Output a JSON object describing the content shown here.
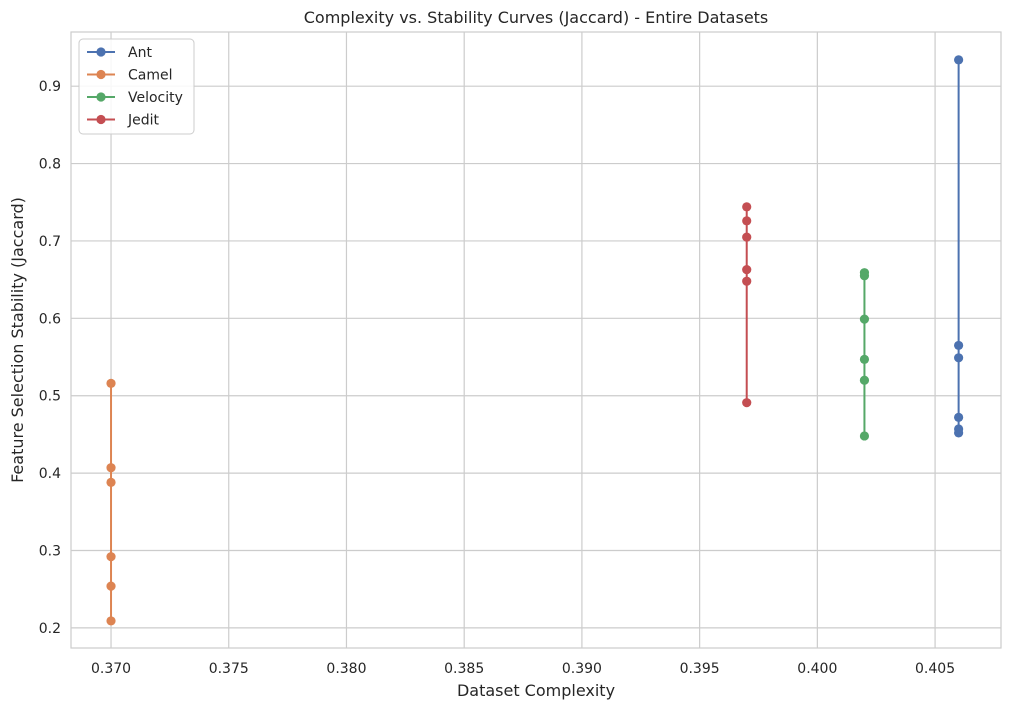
{
  "chart_data": {
    "type": "line",
    "title": "Complexity vs. Stability Curves (Jaccard) - Entire Datasets",
    "xlabel": "Dataset Complexity",
    "ylabel": "Feature Selection Stability (Jaccard)",
    "xlim": [
      0.3683,
      0.4078
    ],
    "ylim": [
      0.174,
      0.97
    ],
    "x_ticks": [
      0.37,
      0.375,
      0.38,
      0.385,
      0.39,
      0.395,
      0.4,
      0.405
    ],
    "x_tick_labels": [
      "0.370",
      "0.375",
      "0.380",
      "0.385",
      "0.390",
      "0.395",
      "0.400",
      "0.405"
    ],
    "y_ticks": [
      0.2,
      0.3,
      0.4,
      0.5,
      0.6,
      0.7,
      0.8,
      0.9
    ],
    "y_tick_labels": [
      "0.2",
      "0.3",
      "0.4",
      "0.5",
      "0.6",
      "0.7",
      "0.8",
      "0.9"
    ],
    "grid": true,
    "legend_position": "top-left",
    "series": [
      {
        "name": "Ant",
        "color": "#4c72b0",
        "x": [
          0.406,
          0.406,
          0.406,
          0.406,
          0.406,
          0.406
        ],
        "y": [
          0.934,
          0.565,
          0.549,
          0.472,
          0.457,
          0.452
        ]
      },
      {
        "name": "Camel",
        "color": "#dd8452",
        "x": [
          0.37,
          0.37,
          0.37,
          0.37,
          0.37,
          0.37
        ],
        "y": [
          0.516,
          0.407,
          0.388,
          0.292,
          0.254,
          0.209
        ]
      },
      {
        "name": "Velocity",
        "color": "#55a868",
        "x": [
          0.402,
          0.402,
          0.402,
          0.402,
          0.402,
          0.402
        ],
        "y": [
          0.659,
          0.655,
          0.599,
          0.547,
          0.52,
          0.448
        ]
      },
      {
        "name": "Jedit",
        "color": "#c44e52",
        "x": [
          0.397,
          0.397,
          0.397,
          0.397,
          0.397,
          0.397
        ],
        "y": [
          0.744,
          0.726,
          0.705,
          0.663,
          0.648,
          0.491
        ]
      }
    ]
  }
}
